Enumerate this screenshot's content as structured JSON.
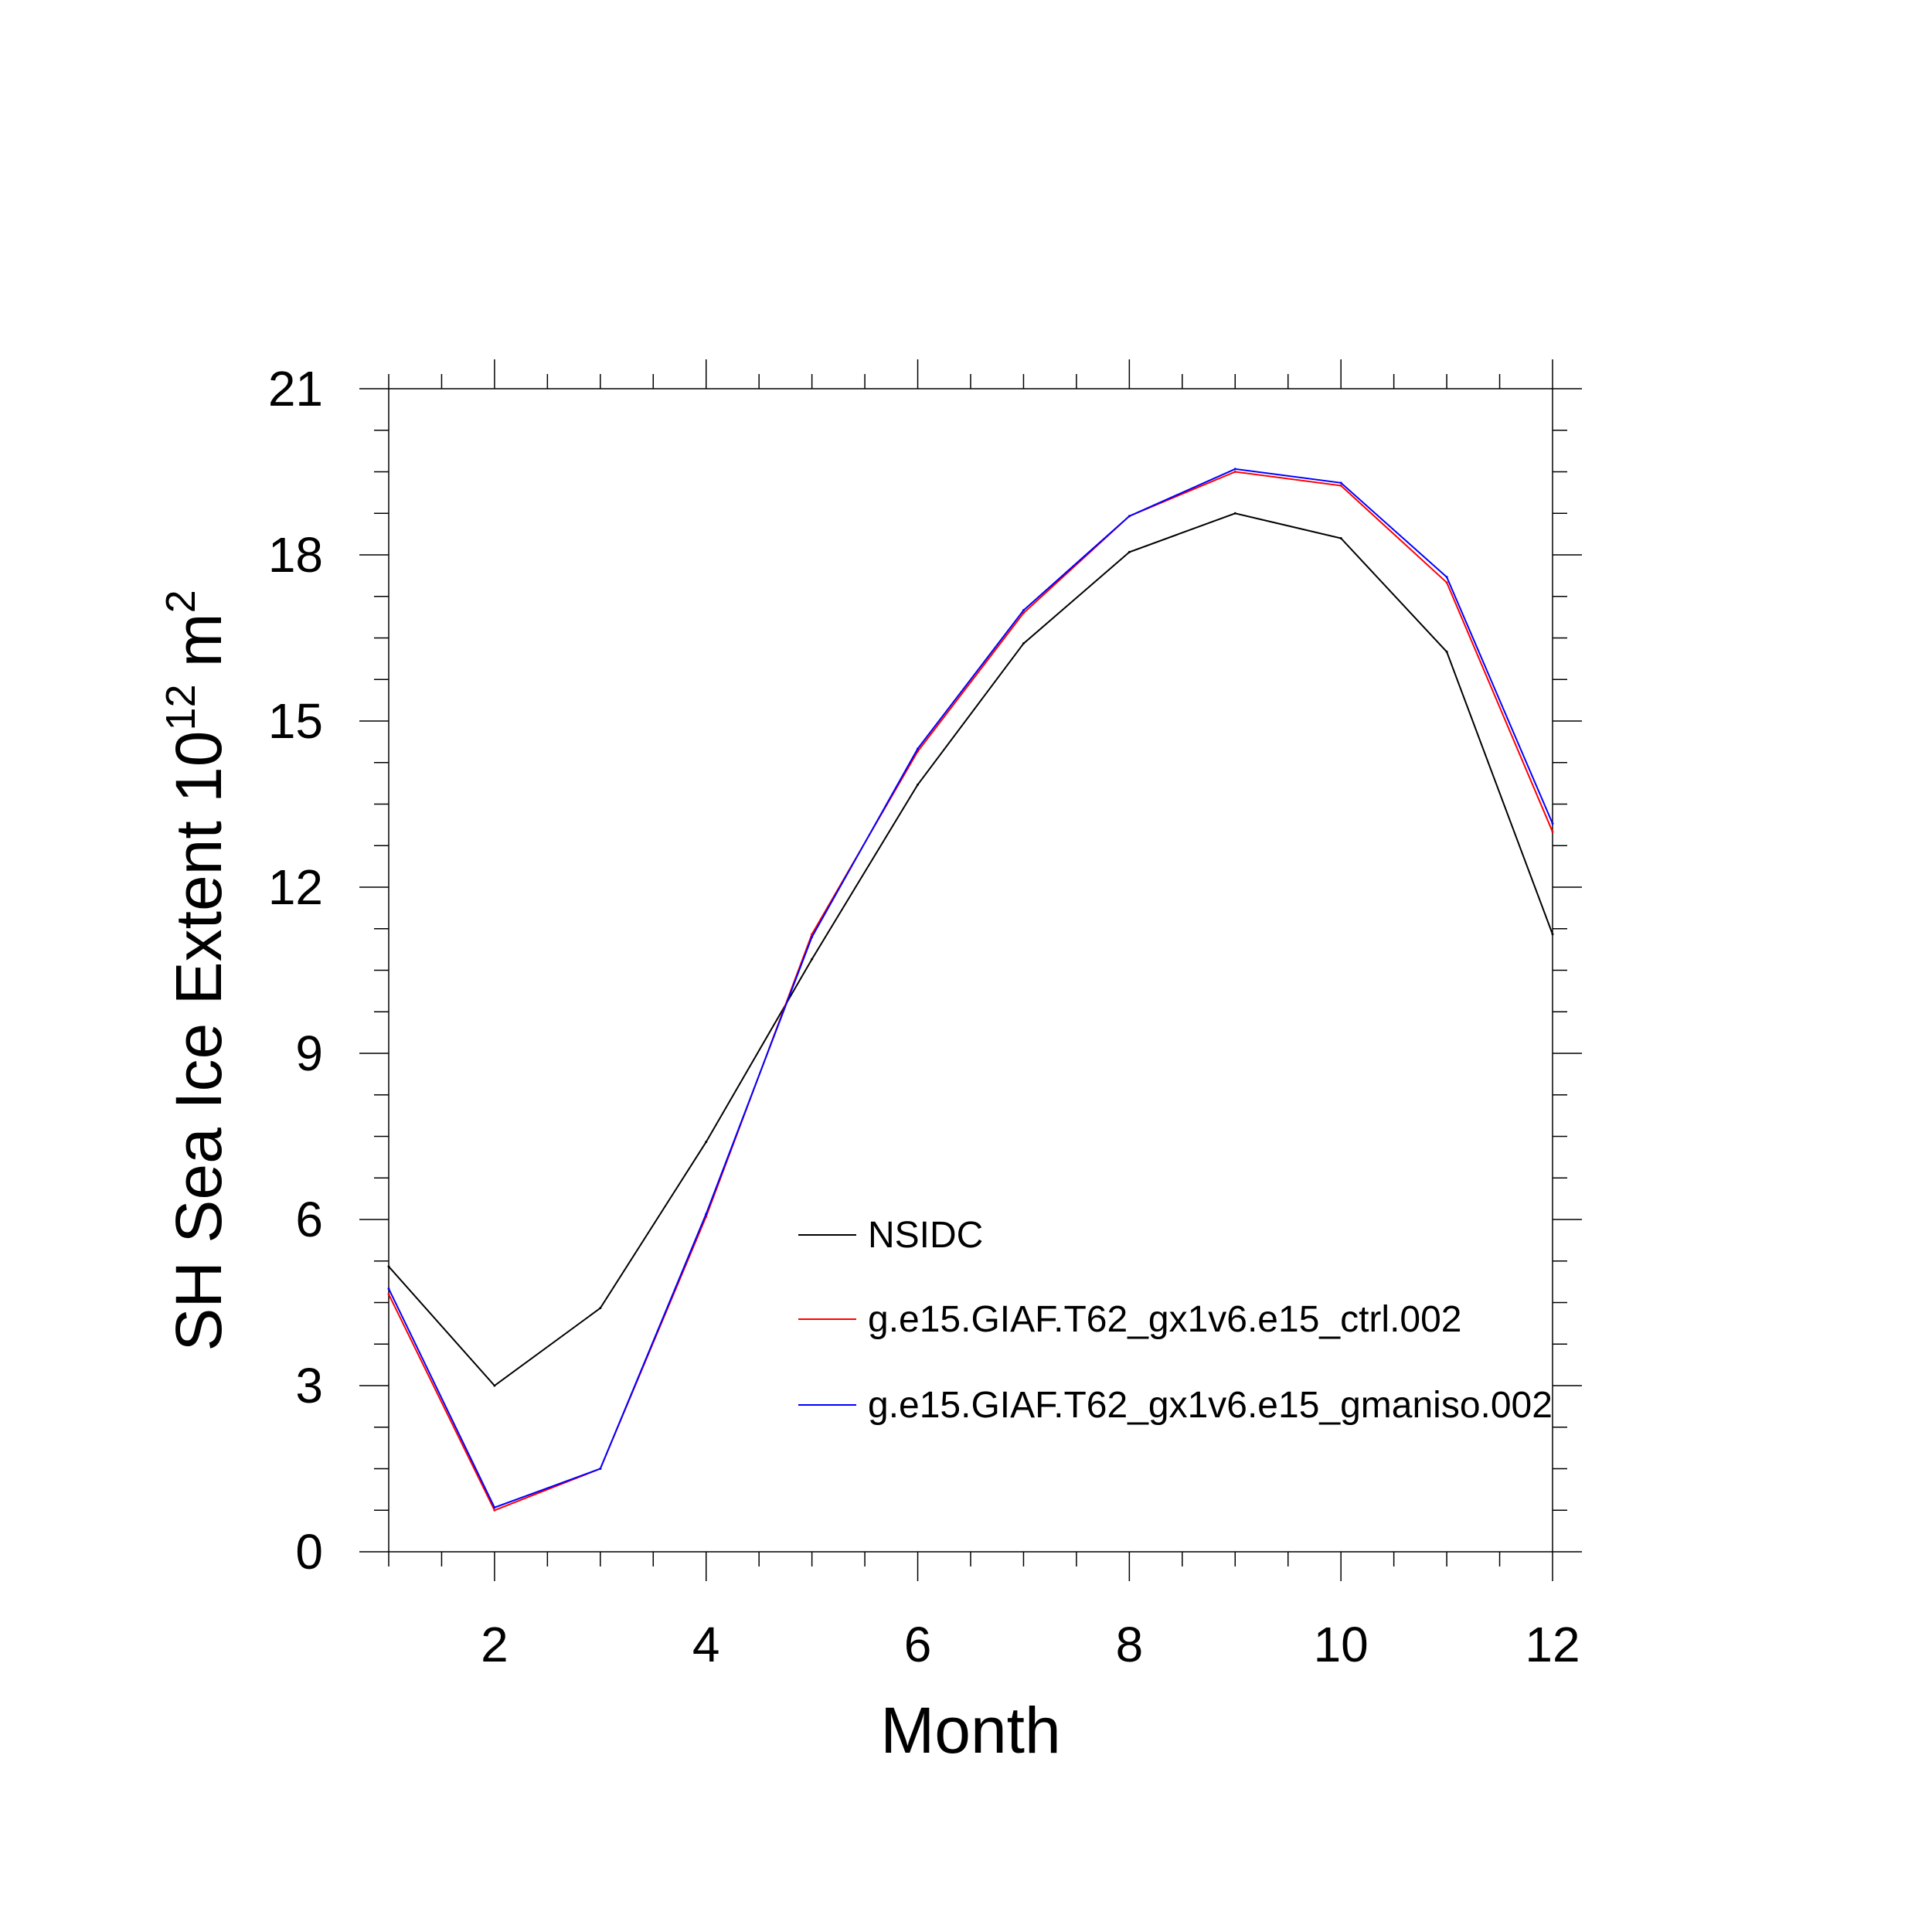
{
  "chart_data": {
    "type": "line",
    "xlabel": "Month",
    "ylabel_main": "SH Sea Ice Extent 10",
    "ylabel_exp": "12",
    "ylabel_unit": "m",
    "ylabel_unit_exp": "2",
    "xlim": [
      1,
      12
    ],
    "ylim": [
      0,
      21
    ],
    "xticks": [
      2,
      4,
      6,
      8,
      10,
      12
    ],
    "yticks": [
      0,
      3,
      6,
      9,
      12,
      15,
      18,
      21
    ],
    "x": [
      1,
      2,
      3,
      4,
      5,
      6,
      7,
      8,
      9,
      10,
      11,
      12
    ],
    "series": [
      {
        "name": "NSIDC",
        "color": "#000000",
        "values": [
          5.15,
          3.0,
          4.4,
          7.4,
          10.7,
          13.85,
          16.4,
          18.05,
          18.75,
          18.3,
          16.25,
          11.15
        ]
      },
      {
        "name": "g.e15.GIAF.T62_gx1v6.e15_ctrl.002",
        "color": "#ff0000",
        "values": [
          4.65,
          0.75,
          1.5,
          6.05,
          11.15,
          14.45,
          16.95,
          18.7,
          19.5,
          19.25,
          17.5,
          13.0
        ]
      },
      {
        "name": "g.e15.GIAF.T62_gx1v6.e15_gmaniso.002",
        "color": "#0000ff",
        "values": [
          4.75,
          0.8,
          1.5,
          6.1,
          11.1,
          14.5,
          17.0,
          18.7,
          19.55,
          19.3,
          17.6,
          13.15
        ]
      }
    ],
    "grid": false,
    "legend_position": "lower-right"
  }
}
